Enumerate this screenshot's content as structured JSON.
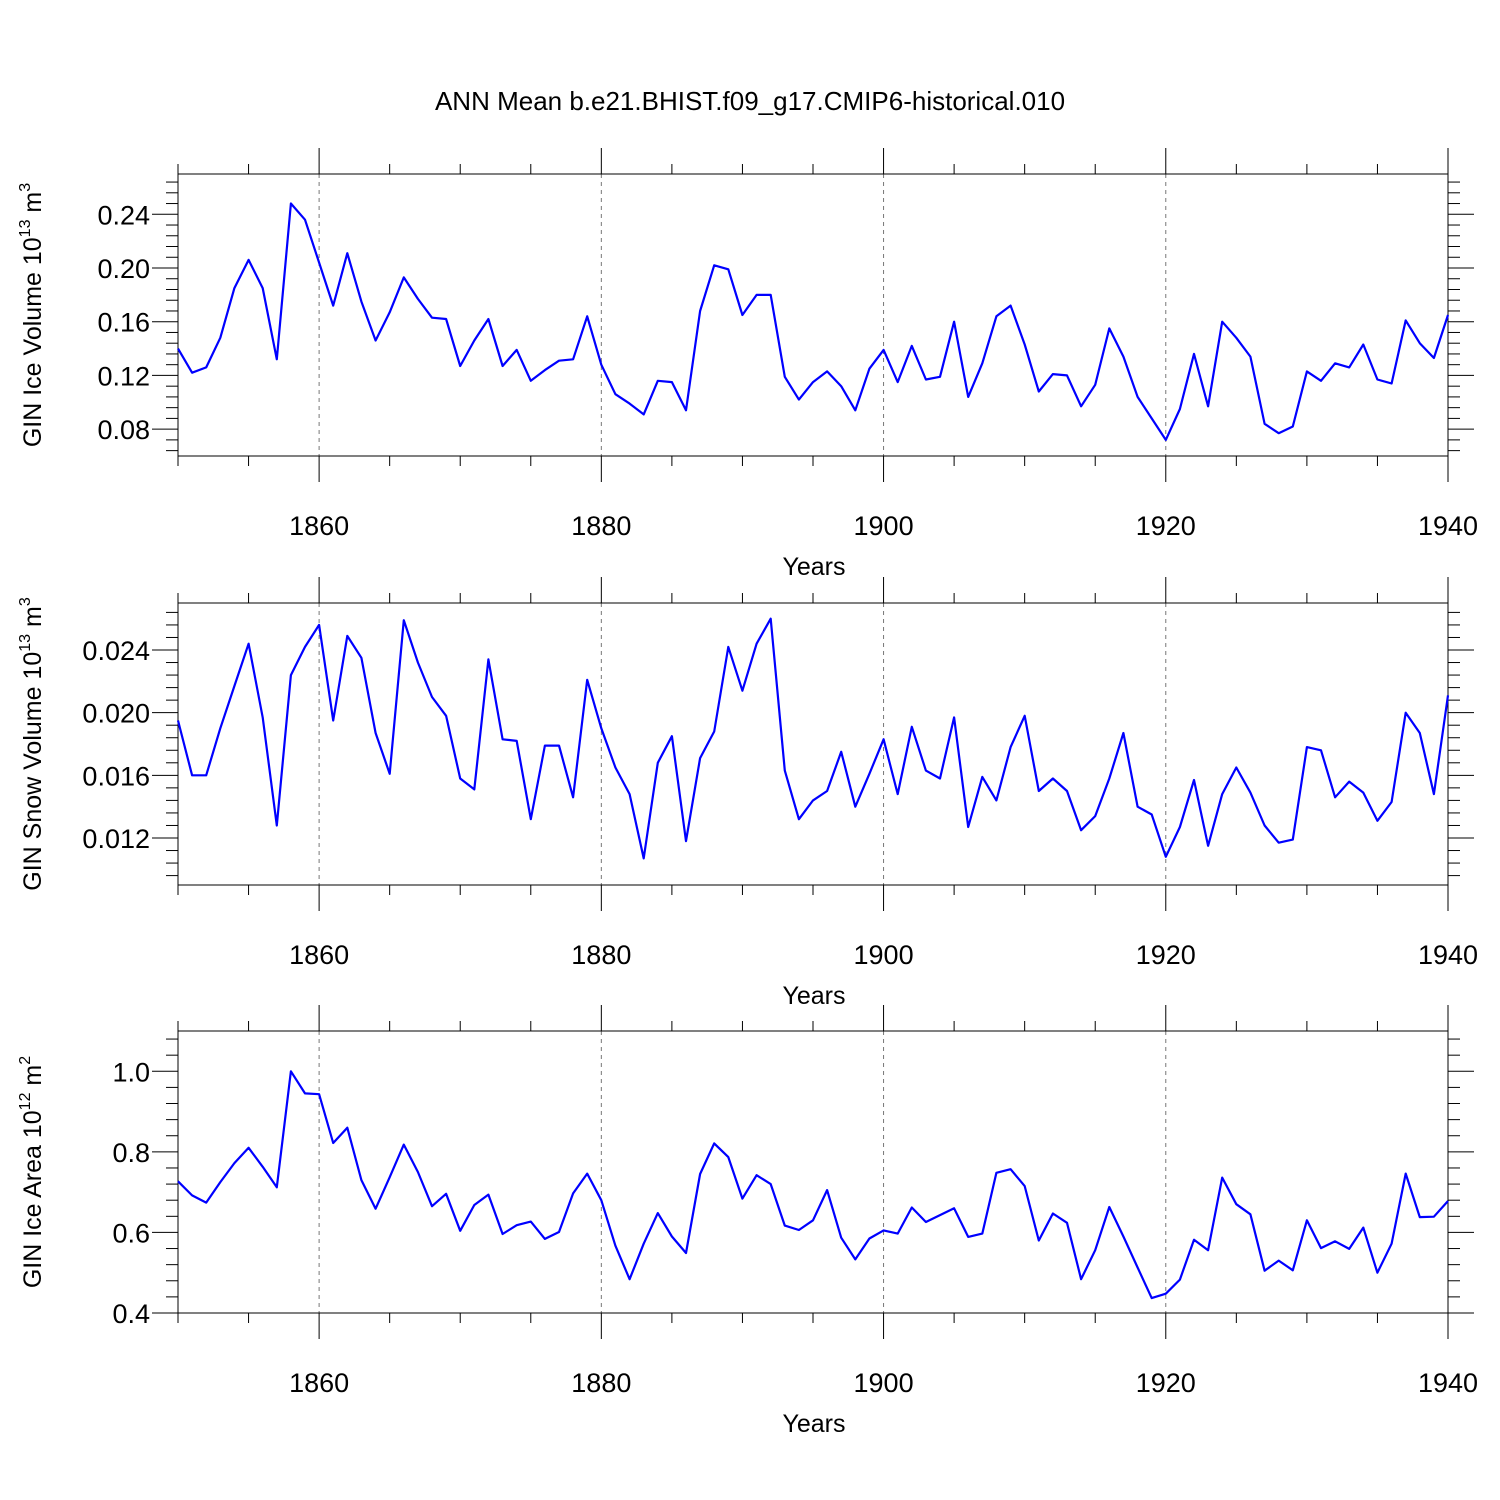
{
  "title": "ANN Mean b.e21.BHIST.f09_g17.CMIP6-historical.010",
  "colors": {
    "series": "#0000ff",
    "axes": "#000000",
    "grid": "#777777"
  },
  "chart_data": [
    {
      "type": "line",
      "xlabel": "Years",
      "ylabel": "GIN Ice Volume 10",
      "ylabel_exp": "13",
      "ylabel_unit": " m",
      "ylabel_unit_exp": "3",
      "xlim": [
        1850,
        1940
      ],
      "ylim": [
        0.06,
        0.27
      ],
      "x_ticks": [
        1860,
        1880,
        1900,
        1920,
        1940
      ],
      "y_ticks": [
        0.08,
        0.12,
        0.16,
        0.2,
        0.24
      ],
      "y_tick_labels": [
        "0.08",
        "0.12",
        "0.16",
        "0.20",
        "0.24"
      ],
      "vertical_grid": [
        1860,
        1880,
        1900,
        1920
      ],
      "x_start": 1850,
      "values": [
        0.14,
        0.122,
        0.126,
        0.148,
        0.185,
        0.206,
        0.185,
        0.132,
        0.248,
        0.236,
        0.204,
        0.172,
        0.211,
        0.175,
        0.146,
        0.167,
        0.193,
        0.177,
        0.163,
        0.162,
        0.127,
        0.146,
        0.162,
        0.127,
        0.139,
        0.116,
        0.124,
        0.131,
        0.132,
        0.164,
        0.128,
        0.106,
        0.099,
        0.091,
        0.116,
        0.115,
        0.094,
        0.168,
        0.202,
        0.199,
        0.165,
        0.18,
        0.18,
        0.119,
        0.102,
        0.115,
        0.123,
        0.112,
        0.094,
        0.125,
        0.139,
        0.115,
        0.142,
        0.117,
        0.119,
        0.16,
        0.104,
        0.129,
        0.164,
        0.172,
        0.143,
        0.108,
        0.121,
        0.12,
        0.097,
        0.113,
        0.155,
        0.134,
        0.104,
        0.088,
        0.072,
        0.095,
        0.136,
        0.097,
        0.16,
        0.148,
        0.134,
        0.084,
        0.077,
        0.082,
        0.123,
        0.116,
        0.129,
        0.126,
        0.143,
        0.117,
        0.114,
        0.161,
        0.144,
        0.133,
        0.165
      ]
    },
    {
      "type": "line",
      "xlabel": "Years",
      "ylabel": "GIN Snow Volume 10",
      "ylabel_exp": "13",
      "ylabel_unit": " m",
      "ylabel_unit_exp": "3",
      "xlim": [
        1850,
        1940
      ],
      "ylim": [
        0.009,
        0.027
      ],
      "x_ticks": [
        1860,
        1880,
        1900,
        1920,
        1940
      ],
      "y_ticks": [
        0.012,
        0.016,
        0.02,
        0.024
      ],
      "y_tick_labels": [
        "0.012",
        "0.016",
        "0.020",
        "0.024"
      ],
      "vertical_grid": [
        1860,
        1880,
        1900,
        1920
      ],
      "x_start": 1850,
      "values": [
        0.0195,
        0.016,
        0.016,
        0.019,
        0.0217,
        0.0244,
        0.0197,
        0.0128,
        0.0224,
        0.0242,
        0.0256,
        0.0195,
        0.0249,
        0.0235,
        0.0187,
        0.0161,
        0.0259,
        0.0232,
        0.021,
        0.0198,
        0.0158,
        0.0151,
        0.0234,
        0.0183,
        0.0182,
        0.0132,
        0.0179,
        0.0179,
        0.0146,
        0.0221,
        0.019,
        0.0165,
        0.0148,
        0.0107,
        0.0168,
        0.0185,
        0.0118,
        0.0171,
        0.0188,
        0.0242,
        0.0214,
        0.0244,
        0.026,
        0.0163,
        0.0132,
        0.0144,
        0.015,
        0.0175,
        0.014,
        0.0161,
        0.0183,
        0.0148,
        0.0191,
        0.0163,
        0.0158,
        0.0197,
        0.0127,
        0.0159,
        0.0144,
        0.0178,
        0.0198,
        0.015,
        0.0158,
        0.015,
        0.0125,
        0.0134,
        0.0158,
        0.0187,
        0.014,
        0.0135,
        0.0108,
        0.0127,
        0.0157,
        0.0115,
        0.0148,
        0.0165,
        0.0149,
        0.0128,
        0.0117,
        0.0119,
        0.0178,
        0.0176,
        0.0146,
        0.0156,
        0.0149,
        0.0131,
        0.0143,
        0.02,
        0.0187,
        0.0148,
        0.0211
      ]
    },
    {
      "type": "line",
      "xlabel": "Years",
      "ylabel": "GIN Ice Area 10",
      "ylabel_exp": "12",
      "ylabel_unit": " m",
      "ylabel_unit_exp": "2",
      "xlim": [
        1850,
        1940
      ],
      "ylim": [
        0.4,
        1.1
      ],
      "x_ticks": [
        1860,
        1880,
        1900,
        1920,
        1940
      ],
      "y_ticks": [
        0.4,
        0.6,
        0.8,
        1.0
      ],
      "y_tick_labels": [
        "0.4",
        "0.6",
        "0.8",
        "1.0"
      ],
      "vertical_grid": [
        1860,
        1880,
        1900,
        1920
      ],
      "x_start": 1850,
      "values": [
        0.727,
        0.692,
        0.674,
        0.725,
        0.772,
        0.81,
        0.763,
        0.712,
        1.0,
        0.945,
        0.943,
        0.822,
        0.86,
        0.73,
        0.659,
        0.737,
        0.818,
        0.75,
        0.665,
        0.696,
        0.604,
        0.668,
        0.694,
        0.596,
        0.618,
        0.627,
        0.584,
        0.601,
        0.697,
        0.746,
        0.68,
        0.567,
        0.484,
        0.572,
        0.648,
        0.59,
        0.549,
        0.745,
        0.821,
        0.787,
        0.684,
        0.742,
        0.72,
        0.617,
        0.606,
        0.63,
        0.705,
        0.587,
        0.533,
        0.585,
        0.605,
        0.597,
        0.662,
        0.626,
        0.643,
        0.66,
        0.589,
        0.597,
        0.748,
        0.757,
        0.715,
        0.58,
        0.647,
        0.624,
        0.484,
        0.556,
        0.663,
        0.59,
        0.513,
        0.437,
        0.448,
        0.483,
        0.582,
        0.556,
        0.736,
        0.67,
        0.645,
        0.505,
        0.53,
        0.506,
        0.63,
        0.561,
        0.578,
        0.559,
        0.612,
        0.5,
        0.572,
        0.746,
        0.638,
        0.639,
        0.678
      ]
    }
  ]
}
